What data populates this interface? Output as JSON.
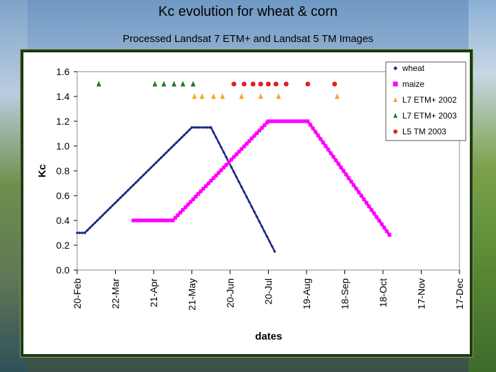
{
  "header": {
    "title": "Kc evolution for wheat & corn",
    "subtitle": "Processed Landsat 7 ETM+ and Landsat 5 TM Images"
  },
  "chart_data": {
    "type": "line",
    "title": "",
    "xlabel": "dates",
    "ylabel": "Kc",
    "ylim": [
      0,
      1.6
    ],
    "yticks": [
      "0.0",
      "0.2",
      "0.4",
      "0.6",
      "0.8",
      "1.0",
      "1.2",
      "1.4",
      "1.6"
    ],
    "xlim": [
      "20-Feb",
      "17-Dec"
    ],
    "xticks": [
      "20-Feb",
      "22-Mar",
      "21-Apr",
      "21-May",
      "20-Jun",
      "20-Jul",
      "19-Aug",
      "18-Sep",
      "18-Oct",
      "17-Nov",
      "17-Dec"
    ],
    "grid": false,
    "legend_position": "top-right",
    "series": [
      {
        "name": "wheat",
        "color": "#1b2a80",
        "marker": "diamond",
        "x": [
          "20-Feb",
          "26-Feb",
          "21-May",
          "5-Jun",
          "25-Jul"
        ],
        "y": [
          0.3,
          0.3,
          1.15,
          1.15,
          0.15
        ]
      },
      {
        "name": "maize",
        "color": "#ff00ff",
        "marker": "square",
        "x": [
          "5-Apr",
          "6-May",
          "20-Jul",
          "20-Aug",
          "24-Oct"
        ],
        "y": [
          0.4,
          0.4,
          1.2,
          1.2,
          0.27
        ]
      },
      {
        "name": "L7 ETM+ 2002",
        "color": "#f5a623",
        "marker": "triangle",
        "x": [
          "23-May",
          "29-May",
          "7-Jun",
          "14-Jun",
          "29-Jun",
          "14-Jul",
          "28-Jul",
          "12-Sep"
        ],
        "y": [
          1.4,
          1.4,
          1.4,
          1.4,
          1.4,
          1.4,
          1.4,
          1.4
        ]
      },
      {
        "name": "L7 ETM+ 2003",
        "color": "#1e7b1e",
        "marker": "triangle",
        "x": [
          "9-Mar",
          "22-Apr",
          "29-Apr",
          "7-May",
          "14-May",
          "22-May"
        ],
        "y": [
          1.5,
          1.5,
          1.5,
          1.5,
          1.5,
          1.5
        ]
      },
      {
        "name": "L5 TM 2003",
        "color": "#e02020",
        "marker": "circle",
        "x": [
          "23-Jun",
          "1-Jul",
          "8-Jul",
          "14-Jul",
          "20-Jul",
          "26-Jul",
          "3-Aug",
          "20-Aug",
          "10-Sep"
        ],
        "y": [
          1.5,
          1.5,
          1.5,
          1.5,
          1.5,
          1.5,
          1.5,
          1.5,
          1.5
        ]
      }
    ]
  }
}
